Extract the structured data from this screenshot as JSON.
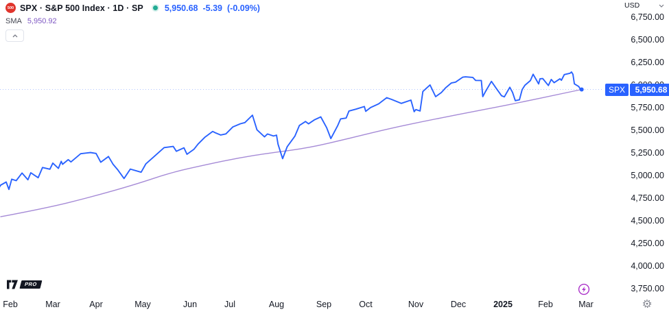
{
  "header": {
    "symbol_logo_text": "500",
    "title": "SPX · S&P 500 Index · 1D · SP",
    "market_status": "open",
    "last_price": "5,950.68",
    "change": "-5.39",
    "change_pct": "(-0.09%)",
    "indicator": {
      "label": "SMA",
      "value": "5,950.92"
    }
  },
  "price_axis": {
    "currency_label": "USD",
    "ticks": [
      "6,750.00",
      "6,500.00",
      "6,250.00",
      "6,000.00",
      "5,750.00",
      "5,500.00",
      "5,250.00",
      "5,000.00",
      "4,750.00",
      "4,500.00",
      "4,250.00",
      "4,000.00",
      "3,750.00"
    ],
    "badge": {
      "symbol": "SPX",
      "price": "5,950.68"
    }
  },
  "time_axis": {
    "labels": [
      {
        "text": "Feb",
        "bold": false
      },
      {
        "text": "Mar",
        "bold": false
      },
      {
        "text": "Apr",
        "bold": false
      },
      {
        "text": "May",
        "bold": false
      },
      {
        "text": "Jun",
        "bold": false
      },
      {
        "text": "Jul",
        "bold": false
      },
      {
        "text": "Aug",
        "bold": false
      },
      {
        "text": "Sep",
        "bold": false
      },
      {
        "text": "Oct",
        "bold": false
      },
      {
        "text": "Nov",
        "bold": false
      },
      {
        "text": "Dec",
        "bold": false
      },
      {
        "text": "2025",
        "bold": true
      },
      {
        "text": "Feb",
        "bold": false
      },
      {
        "text": "Mar",
        "bold": false
      }
    ]
  },
  "footer": {
    "pro_label": "PRO"
  },
  "colors": {
    "price_line": "#2962ff",
    "sma_line": "#a58ad6",
    "sma_text": "#7e57c2",
    "badge_bg": "#2962ff",
    "status_dot": "#22ab94",
    "lightning": "#ab32c9",
    "text": "#131722",
    "secondary_text": "#787b86",
    "logo_red": "#e0342c"
  },
  "chart_data": {
    "type": "line",
    "title": "SPX S&P 500 Index, 1D, SP",
    "grid": false,
    "legend_position": "top-left",
    "x_range": [
      "2024-01-24",
      "2025-03-10"
    ],
    "y_ticks": [
      6750,
      6500,
      6250,
      6000,
      5750,
      5500,
      5250,
      5000,
      4750,
      4500,
      4250,
      4000,
      3750
    ],
    "ylim": [
      3700,
      6950
    ],
    "current_value": 5950.68,
    "current_value_date": "2025-02-26",
    "series": [
      {
        "name": "SPX close",
        "color": "#2962ff",
        "points": [
          [
            "2024-01-24",
            4869
          ],
          [
            "2024-01-25",
            4894
          ],
          [
            "2024-01-29",
            4928
          ],
          [
            "2024-01-31",
            4846
          ],
          [
            "2024-02-02",
            4959
          ],
          [
            "2024-02-05",
            4943
          ],
          [
            "2024-02-09",
            5027
          ],
          [
            "2024-02-13",
            4953
          ],
          [
            "2024-02-15",
            5030
          ],
          [
            "2024-02-20",
            4976
          ],
          [
            "2024-02-23",
            5089
          ],
          [
            "2024-02-28",
            5070
          ],
          [
            "2024-03-01",
            5137
          ],
          [
            "2024-03-05",
            5079
          ],
          [
            "2024-03-07",
            5157
          ],
          [
            "2024-03-08",
            5124
          ],
          [
            "2024-03-12",
            5175
          ],
          [
            "2024-03-14",
            5150
          ],
          [
            "2024-03-21",
            5241
          ],
          [
            "2024-03-28",
            5254
          ],
          [
            "2024-04-01",
            5244
          ],
          [
            "2024-04-04",
            5147
          ],
          [
            "2024-04-09",
            5210
          ],
          [
            "2024-04-12",
            5123
          ],
          [
            "2024-04-15",
            5062
          ],
          [
            "2024-04-19",
            4967
          ],
          [
            "2024-04-23",
            5071
          ],
          [
            "2024-04-30",
            5036
          ],
          [
            "2024-05-03",
            5128
          ],
          [
            "2024-05-07",
            5188
          ],
          [
            "2024-05-15",
            5308
          ],
          [
            "2024-05-21",
            5321
          ],
          [
            "2024-05-23",
            5268
          ],
          [
            "2024-05-28",
            5306
          ],
          [
            "2024-05-30",
            5235
          ],
          [
            "2024-06-04",
            5291
          ],
          [
            "2024-06-07",
            5347
          ],
          [
            "2024-06-12",
            5421
          ],
          [
            "2024-06-18",
            5487
          ],
          [
            "2024-06-20",
            5473
          ],
          [
            "2024-06-24",
            5448
          ],
          [
            "2024-06-28",
            5460
          ],
          [
            "2024-07-03",
            5537
          ],
          [
            "2024-07-08",
            5572
          ],
          [
            "2024-07-11",
            5585
          ],
          [
            "2024-07-16",
            5667
          ],
          [
            "2024-07-19",
            5505
          ],
          [
            "2024-07-24",
            5427
          ],
          [
            "2024-07-26",
            5459
          ],
          [
            "2024-07-30",
            5436
          ],
          [
            "2024-08-01",
            5446
          ],
          [
            "2024-08-02",
            5346
          ],
          [
            "2024-08-05",
            5186
          ],
          [
            "2024-08-08",
            5319
          ],
          [
            "2024-08-13",
            5434
          ],
          [
            "2024-08-16",
            5554
          ],
          [
            "2024-08-20",
            5597
          ],
          [
            "2024-08-22",
            5571
          ],
          [
            "2024-08-26",
            5617
          ],
          [
            "2024-08-30",
            5648
          ],
          [
            "2024-09-03",
            5528
          ],
          [
            "2024-09-06",
            5408
          ],
          [
            "2024-09-11",
            5554
          ],
          [
            "2024-09-13",
            5626
          ],
          [
            "2024-09-17",
            5635
          ],
          [
            "2024-09-19",
            5713
          ],
          [
            "2024-09-24",
            5733
          ],
          [
            "2024-09-30",
            5762
          ],
          [
            "2024-10-01",
            5709
          ],
          [
            "2024-10-04",
            5751
          ],
          [
            "2024-10-09",
            5792
          ],
          [
            "2024-10-14",
            5860
          ],
          [
            "2024-10-17",
            5841
          ],
          [
            "2024-10-23",
            5797
          ],
          [
            "2024-10-29",
            5833
          ],
          [
            "2024-10-31",
            5705
          ],
          [
            "2024-11-01",
            5729
          ],
          [
            "2024-11-04",
            5713
          ],
          [
            "2024-11-06",
            5929
          ],
          [
            "2024-11-11",
            6001
          ],
          [
            "2024-11-15",
            5871
          ],
          [
            "2024-11-19",
            5917
          ],
          [
            "2024-11-22",
            5969
          ],
          [
            "2024-11-26",
            6022
          ],
          [
            "2024-11-29",
            6032
          ],
          [
            "2024-12-04",
            6086
          ],
          [
            "2024-12-06",
            6090
          ],
          [
            "2024-12-11",
            6084
          ],
          [
            "2024-12-13",
            6051
          ],
          [
            "2024-12-17",
            6050
          ],
          [
            "2024-12-18",
            5872
          ],
          [
            "2024-12-20",
            5931
          ],
          [
            "2024-12-24",
            6040
          ],
          [
            "2024-12-27",
            5971
          ],
          [
            "2024-12-31",
            5882
          ],
          [
            "2025-01-02",
            5869
          ],
          [
            "2025-01-06",
            5975
          ],
          [
            "2025-01-08",
            5918
          ],
          [
            "2025-01-10",
            5827
          ],
          [
            "2025-01-13",
            5836
          ],
          [
            "2025-01-15",
            5950
          ],
          [
            "2025-01-17",
            5997
          ],
          [
            "2025-01-21",
            6049
          ],
          [
            "2025-01-23",
            6119
          ],
          [
            "2025-01-27",
            6012
          ],
          [
            "2025-01-28",
            6068
          ],
          [
            "2025-01-30",
            6071
          ],
          [
            "2025-02-03",
            5995
          ],
          [
            "2025-02-05",
            6061
          ],
          [
            "2025-02-07",
            6026
          ],
          [
            "2025-02-11",
            6069
          ],
          [
            "2025-02-12",
            6052
          ],
          [
            "2025-02-14",
            6115
          ],
          [
            "2025-02-18",
            6130
          ],
          [
            "2025-02-19",
            6144
          ],
          [
            "2025-02-20",
            6118
          ],
          [
            "2025-02-21",
            6013
          ],
          [
            "2025-02-24",
            5983
          ],
          [
            "2025-02-25",
            5955
          ],
          [
            "2025-02-26",
            5950.68
          ]
        ]
      },
      {
        "name": "SMA",
        "color": "#a58ad6",
        "points": [
          [
            "2024-01-25",
            4545
          ],
          [
            "2024-02-27",
            4645
          ],
          [
            "2024-03-29",
            4765
          ],
          [
            "2024-04-27",
            4905
          ],
          [
            "2024-05-19",
            5030
          ],
          [
            "2024-06-13",
            5120
          ],
          [
            "2024-07-07",
            5195
          ],
          [
            "2024-07-28",
            5250
          ],
          [
            "2024-08-22",
            5305
          ],
          [
            "2024-09-19",
            5410
          ],
          [
            "2024-10-16",
            5520
          ],
          [
            "2024-11-07",
            5600
          ],
          [
            "2024-12-01",
            5675
          ],
          [
            "2024-12-26",
            5750
          ],
          [
            "2025-01-19",
            5825
          ],
          [
            "2025-02-08",
            5890
          ],
          [
            "2025-02-26",
            5950.92
          ]
        ]
      }
    ]
  }
}
